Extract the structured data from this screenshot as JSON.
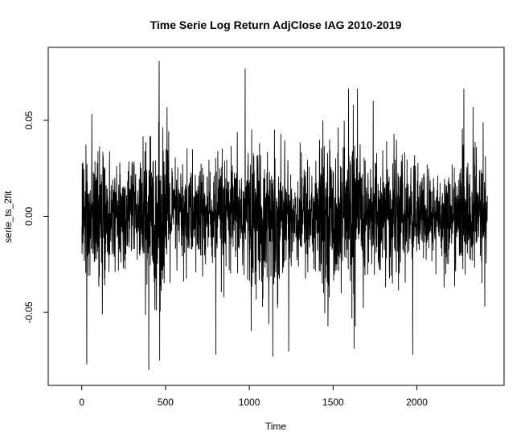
{
  "chart_data": {
    "type": "line",
    "title": "Time Serie Log Return AdjClose IAG 2010-2019",
    "xlabel": "Time",
    "ylabel": "serie_ts_2fit",
    "xlim": [
      -200,
      2520
    ],
    "ylim": [
      -0.088,
      0.088
    ],
    "x_ticks": [
      0,
      500,
      1000,
      1500,
      2000
    ],
    "x_tick_labels": [
      "0",
      "500",
      "1000",
      "1500",
      "2000"
    ],
    "y_ticks": [
      -0.05,
      0.0,
      0.05
    ],
    "y_tick_labels": [
      "-0.05",
      "0.00",
      "0.05"
    ],
    "grid": false,
    "legend": "none",
    "n_points": 2420,
    "x_start": 1,
    "series": [
      {
        "line_color": "#000000",
        "summary": {
          "min": -0.08,
          "max": 0.081,
          "mean": 0.0
        },
        "notable_points": [
          {
            "x": 30,
            "y": -0.077
          },
          {
            "x": 400,
            "y": -0.08
          },
          {
            "x": 462,
            "y": 0.081
          },
          {
            "x": 465,
            "y": -0.075
          },
          {
            "x": 800,
            "y": -0.072
          },
          {
            "x": 975,
            "y": 0.077
          },
          {
            "x": 1140,
            "y": -0.073
          },
          {
            "x": 1620,
            "y": 0.058
          },
          {
            "x": 1625,
            "y": -0.069
          },
          {
            "x": 1975,
            "y": -0.072
          },
          {
            "x": 2335,
            "y": 0.057
          },
          {
            "x": 2395,
            "y": 0.049
          }
        ]
      }
    ]
  }
}
